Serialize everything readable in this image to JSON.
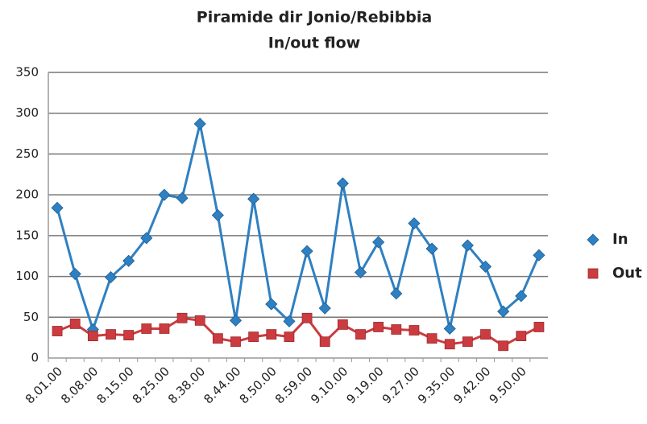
{
  "chart_data": {
    "type": "line",
    "title": "Piramide dir Jonio/Rebibbia",
    "subtitle": "In/out flow",
    "categories": [
      "8.01.00",
      null,
      "8.08.00",
      null,
      "8.15.00",
      null,
      "8.25.00",
      null,
      "8.38.00",
      null,
      "8.44.00",
      null,
      "8.50.00",
      null,
      "8.59.00",
      null,
      "9.10.00",
      null,
      "9.19.00",
      null,
      "9.27.00",
      null,
      "9.35.00",
      null,
      "9.42.00",
      null,
      "9.50.00",
      null
    ],
    "series": [
      {
        "name": "In",
        "color": "#2f80c2",
        "marker": "diamond",
        "values": [
          184,
          103,
          35,
          99,
          119,
          147,
          200,
          196,
          287,
          175,
          46,
          195,
          66,
          45,
          131,
          61,
          214,
          105,
          142,
          79,
          165,
          134,
          36,
          138,
          112,
          57,
          76,
          126
        ]
      },
      {
        "name": "Out",
        "color": "#cc3b40",
        "marker": "square",
        "values": [
          33,
          42,
          27,
          29,
          28,
          36,
          36,
          49,
          46,
          24,
          20,
          26,
          29,
          26,
          49,
          20,
          41,
          29,
          38,
          35,
          34,
          24,
          17,
          20,
          29,
          15,
          27,
          38
        ]
      }
    ],
    "ylim": [
      0,
      350
    ],
    "yticks": [
      0,
      50,
      100,
      150,
      200,
      250,
      300,
      350
    ],
    "grid": true,
    "legend": "right"
  }
}
